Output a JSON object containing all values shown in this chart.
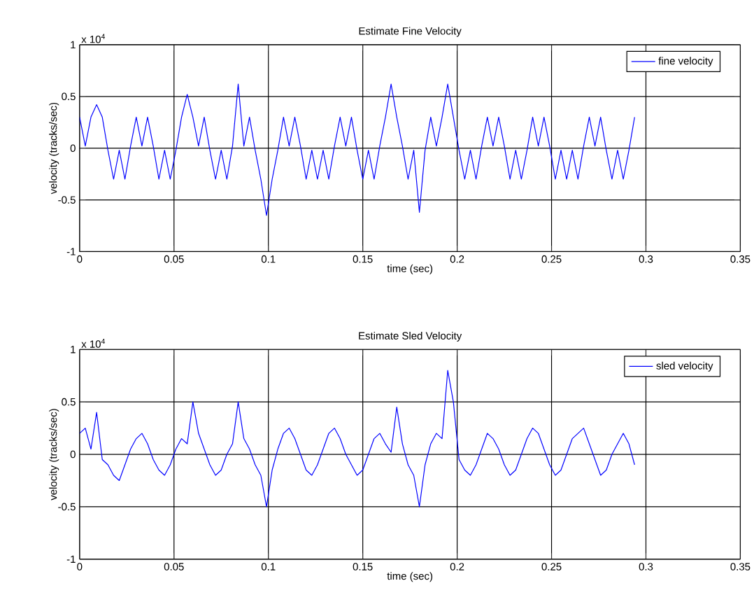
{
  "chart_data": [
    {
      "type": "line",
      "title": "Estimate Fine Velocity",
      "xlabel": "time (sec)",
      "ylabel": "velocity (tracks/sec)",
      "annotations": [
        "x 10$^{4}$"
      ],
      "xlim": [
        0,
        0.35
      ],
      "ylim": [
        -1,
        1
      ],
      "xticks": [
        0,
        0.05,
        0.1,
        0.15,
        0.2,
        0.25,
        0.3,
        0.35
      ],
      "yticks": [
        -1,
        -0.5,
        0,
        0.5,
        1
      ],
      "grid": true,
      "legend": "top right",
      "x": [
        0,
        0.003,
        0.006,
        0.009,
        0.012,
        0.015,
        0.018,
        0.021,
        0.024,
        0.027,
        0.03,
        0.033,
        0.036,
        0.039,
        0.042,
        0.045,
        0.048,
        0.051,
        0.054,
        0.057,
        0.06,
        0.063,
        0.066,
        0.069,
        0.072,
        0.075,
        0.078,
        0.081,
        0.084,
        0.087,
        0.09,
        0.093,
        0.096,
        0.099,
        0.102,
        0.105,
        0.108,
        0.111,
        0.114,
        0.117,
        0.12,
        0.123,
        0.126,
        0.129,
        0.132,
        0.135,
        0.138,
        0.141,
        0.144,
        0.147,
        0.15,
        0.153,
        0.156,
        0.159,
        0.162,
        0.165,
        0.168,
        0.171,
        0.174,
        0.177,
        0.18,
        0.183,
        0.186,
        0.189,
        0.192,
        0.195,
        0.198,
        0.201,
        0.204,
        0.207,
        0.21,
        0.213,
        0.216,
        0.219,
        0.222,
        0.225,
        0.228,
        0.231,
        0.234,
        0.237,
        0.24,
        0.243,
        0.246,
        0.249,
        0.252,
        0.255,
        0.258,
        0.261,
        0.264,
        0.267,
        0.27,
        0.273,
        0.276,
        0.279,
        0.282,
        0.285,
        0.288,
        0.291,
        0.294
      ],
      "series": [
        {
          "name": "fine velocity",
          "color": "#0000ff",
          "values": [
            0.3,
            0.02,
            0.3,
            0.42,
            0.3,
            -0.02,
            -0.3,
            -0.02,
            -0.3,
            0.02,
            0.3,
            0.02,
            0.3,
            0.02,
            -0.3,
            -0.02,
            -0.3,
            -0.02,
            0.3,
            0.52,
            0.3,
            0.02,
            0.3,
            -0.02,
            -0.3,
            -0.02,
            -0.3,
            0.02,
            0.62,
            0.02,
            0.3,
            -0.02,
            -0.3,
            -0.65,
            -0.3,
            -0.02,
            0.3,
            0.02,
            0.3,
            0.02,
            -0.3,
            -0.02,
            -0.3,
            -0.02,
            -0.3,
            0.02,
            0.3,
            0.02,
            0.3,
            -0.02,
            -0.3,
            -0.02,
            -0.3,
            0.02,
            0.3,
            0.62,
            0.3,
            0.02,
            -0.3,
            -0.02,
            -0.62,
            -0.02,
            0.3,
            0.02,
            0.3,
            0.62,
            0.3,
            -0.02,
            -0.3,
            -0.02,
            -0.3,
            0.02,
            0.3,
            0.02,
            0.3,
            0.02,
            -0.3,
            -0.02,
            -0.3,
            -0.02,
            0.3,
            0.02,
            0.3,
            0.02,
            -0.3,
            -0.02,
            -0.3,
            -0.02,
            -0.3,
            0.02,
            0.3,
            0.02,
            0.3,
            -0.02,
            -0.3,
            -0.02,
            -0.3,
            -0.02,
            0.3
          ]
        }
      ]
    },
    {
      "type": "line",
      "title": "Estimate Sled Velocity",
      "xlabel": "time (sec)",
      "ylabel": "velocity (tracks/sec)",
      "annotations": [
        "x 10$^{4}$"
      ],
      "xlim": [
        0,
        0.35
      ],
      "ylim": [
        -1,
        1
      ],
      "xticks": [
        0,
        0.05,
        0.1,
        0.15,
        0.2,
        0.25,
        0.3,
        0.35
      ],
      "yticks": [
        -1,
        -0.5,
        0,
        0.5,
        1
      ],
      "grid": true,
      "legend": "top right",
      "x": [
        0,
        0.003,
        0.006,
        0.009,
        0.012,
        0.015,
        0.018,
        0.021,
        0.024,
        0.027,
        0.03,
        0.033,
        0.036,
        0.039,
        0.042,
        0.045,
        0.048,
        0.051,
        0.054,
        0.057,
        0.06,
        0.063,
        0.066,
        0.069,
        0.072,
        0.075,
        0.078,
        0.081,
        0.084,
        0.087,
        0.09,
        0.093,
        0.096,
        0.099,
        0.102,
        0.105,
        0.108,
        0.111,
        0.114,
        0.117,
        0.12,
        0.123,
        0.126,
        0.129,
        0.132,
        0.135,
        0.138,
        0.141,
        0.144,
        0.147,
        0.15,
        0.153,
        0.156,
        0.159,
        0.162,
        0.165,
        0.168,
        0.171,
        0.174,
        0.177,
        0.18,
        0.183,
        0.186,
        0.189,
        0.192,
        0.195,
        0.198,
        0.201,
        0.204,
        0.207,
        0.21,
        0.213,
        0.216,
        0.219,
        0.222,
        0.225,
        0.228,
        0.231,
        0.234,
        0.237,
        0.24,
        0.243,
        0.246,
        0.249,
        0.252,
        0.255,
        0.258,
        0.261,
        0.264,
        0.267,
        0.27,
        0.273,
        0.276,
        0.279,
        0.282,
        0.285,
        0.288,
        0.291,
        0.294
      ],
      "series": [
        {
          "name": "sled velocity",
          "color": "#0000ff",
          "values": [
            0.2,
            0.25,
            0.05,
            0.4,
            -0.05,
            -0.1,
            -0.2,
            -0.25,
            -0.1,
            0.05,
            0.15,
            0.2,
            0.1,
            -0.05,
            -0.15,
            -0.2,
            -0.1,
            0.05,
            0.15,
            0.1,
            0.5,
            0.2,
            0.05,
            -0.1,
            -0.2,
            -0.15,
            0,
            0.1,
            0.5,
            0.15,
            0.05,
            -0.1,
            -0.2,
            -0.5,
            -0.15,
            0.05,
            0.2,
            0.25,
            0.15,
            0,
            -0.15,
            -0.2,
            -0.1,
            0.05,
            0.2,
            0.25,
            0.15,
            0,
            -0.1,
            -0.2,
            -0.15,
            0,
            0.15,
            0.2,
            0.1,
            0.02,
            0.45,
            0.1,
            -0.1,
            -0.2,
            -0.5,
            -0.1,
            0.1,
            0.2,
            0.15,
            0.8,
            0.5,
            -0.05,
            -0.15,
            -0.2,
            -0.1,
            0.05,
            0.2,
            0.15,
            0.05,
            -0.1,
            -0.2,
            -0.15,
            0,
            0.15,
            0.25,
            0.2,
            0.05,
            -0.1,
            -0.2,
            -0.15,
            0,
            0.15,
            0.2,
            0.25,
            0.1,
            -0.05,
            -0.2,
            -0.15,
            0,
            0.1,
            0.2,
            0.1,
            -0.1
          ]
        }
      ]
    }
  ]
}
